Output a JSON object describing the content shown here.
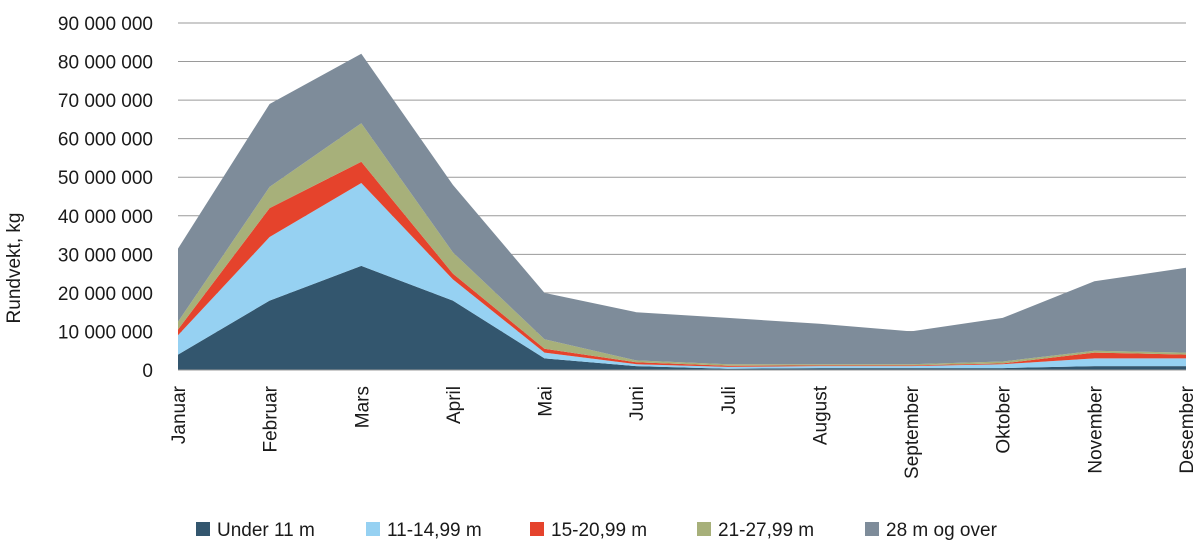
{
  "chart_data": {
    "type": "area",
    "stacked": true,
    "title": "",
    "xlabel": "",
    "ylabel": "Rundvekt, kg",
    "ylim": [
      0,
      90000000
    ],
    "yticks": [
      0,
      10000000,
      20000000,
      30000000,
      40000000,
      50000000,
      60000000,
      70000000,
      80000000,
      90000000
    ],
    "ytick_labels": [
      "0",
      "10 000 000",
      "20 000 000",
      "30 000 000",
      "40 000 000",
      "50 000 000",
      "60 000 000",
      "70 000 000",
      "80 000 000",
      "90 000 000"
    ],
    "grid": true,
    "legend_position": "bottom",
    "categories": [
      "Januar",
      "Februar",
      "Mars",
      "April",
      "Mai",
      "Juni",
      "Juli",
      "August",
      "September",
      "Oktober",
      "November",
      "Desember"
    ],
    "series": [
      {
        "name": "Under 11 m",
        "color": "#33566e",
        "values": [
          4000000,
          18000000,
          27000000,
          18000000,
          3000000,
          1000000,
          300000,
          500000,
          500000,
          500000,
          1000000,
          1000000
        ]
      },
      {
        "name": "11-14,99 m",
        "color": "#96d1f2",
        "values": [
          5000000,
          16500000,
          21500000,
          5500000,
          1500000,
          500000,
          500000,
          500000,
          500000,
          1000000,
          2000000,
          2000000
        ]
      },
      {
        "name": "15-20,99 m",
        "color": "#e5432c",
        "values": [
          1500000,
          7500000,
          5500000,
          1500000,
          1000000,
          500000,
          300000,
          200000,
          200000,
          200000,
          1500000,
          1000000
        ]
      },
      {
        "name": "21-27,99 m",
        "color": "#a7b07a",
        "values": [
          2000000,
          5500000,
          10000000,
          5500000,
          2500000,
          500000,
          400000,
          300000,
          300000,
          500000,
          500000,
          500000
        ]
      },
      {
        "name": "28 m og over",
        "color": "#7e8c9a",
        "values": [
          19000000,
          21500000,
          18000000,
          17500000,
          12000000,
          12500000,
          12000000,
          10500000,
          8500000,
          11300000,
          18000000,
          22000000
        ]
      }
    ]
  }
}
